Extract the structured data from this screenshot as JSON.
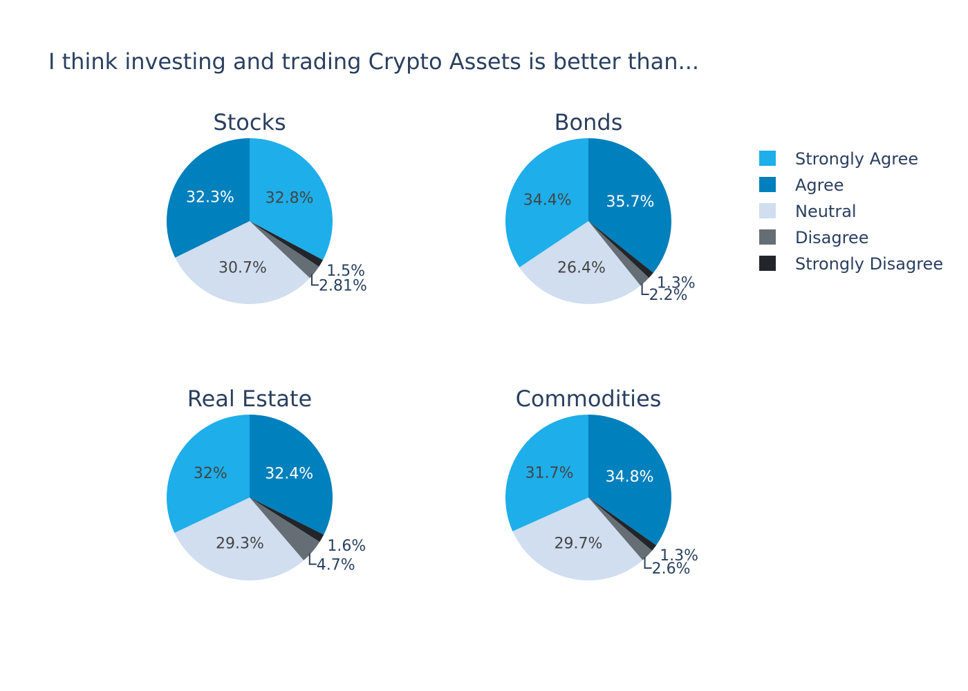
{
  "chart_data": {
    "type": "pie",
    "title": "I think investing and trading Crypto Assets is better than...",
    "legend_position": "right",
    "categories": [
      "Strongly Agree",
      "Agree",
      "Neutral",
      "Disagree",
      "Strongly Disagree"
    ],
    "colors": {
      "Strongly Agree": "#1eaeea",
      "Agree": "#0080bc",
      "Neutral": "#d0def0",
      "Disagree": "#666e75",
      "Strongly Disagree": "#22252a"
    },
    "pies": [
      {
        "title": "Stocks",
        "slices": [
          {
            "name": "Strongly Agree",
            "value": 32.8,
            "label": "32.8%"
          },
          {
            "name": "Strongly Disagree",
            "value": 1.5,
            "label": "1.5%"
          },
          {
            "name": "Disagree",
            "value": 2.81,
            "label": "2.81%"
          },
          {
            "name": "Neutral",
            "value": 30.7,
            "label": "30.7%"
          },
          {
            "name": "Agree",
            "value": 32.3,
            "label": "32.3%"
          }
        ]
      },
      {
        "title": "Bonds",
        "slices": [
          {
            "name": "Agree",
            "value": 35.7,
            "label": "35.7%"
          },
          {
            "name": "Strongly Disagree",
            "value": 1.3,
            "label": "1.3%"
          },
          {
            "name": "Disagree",
            "value": 2.2,
            "label": "2.2%"
          },
          {
            "name": "Neutral",
            "value": 26.4,
            "label": "26.4%"
          },
          {
            "name": "Strongly Agree",
            "value": 34.4,
            "label": "34.4%"
          }
        ]
      },
      {
        "title": "Real Estate",
        "slices": [
          {
            "name": "Agree",
            "value": 32.4,
            "label": "32.4%"
          },
          {
            "name": "Strongly Disagree",
            "value": 1.6,
            "label": "1.6%"
          },
          {
            "name": "Disagree",
            "value": 4.7,
            "label": "4.7%"
          },
          {
            "name": "Neutral",
            "value": 29.3,
            "label": "29.3%"
          },
          {
            "name": "Strongly Agree",
            "value": 32,
            "label": "32%"
          }
        ]
      },
      {
        "title": "Commodities",
        "slices": [
          {
            "name": "Agree",
            "value": 34.8,
            "label": "34.8%"
          },
          {
            "name": "Strongly Disagree",
            "value": 1.3,
            "label": "1.3%"
          },
          {
            "name": "Disagree",
            "value": 2.6,
            "label": "2.6%"
          },
          {
            "name": "Neutral",
            "value": 29.7,
            "label": "29.7%"
          },
          {
            "name": "Strongly Agree",
            "value": 31.7,
            "label": "31.7%"
          }
        ]
      }
    ]
  }
}
